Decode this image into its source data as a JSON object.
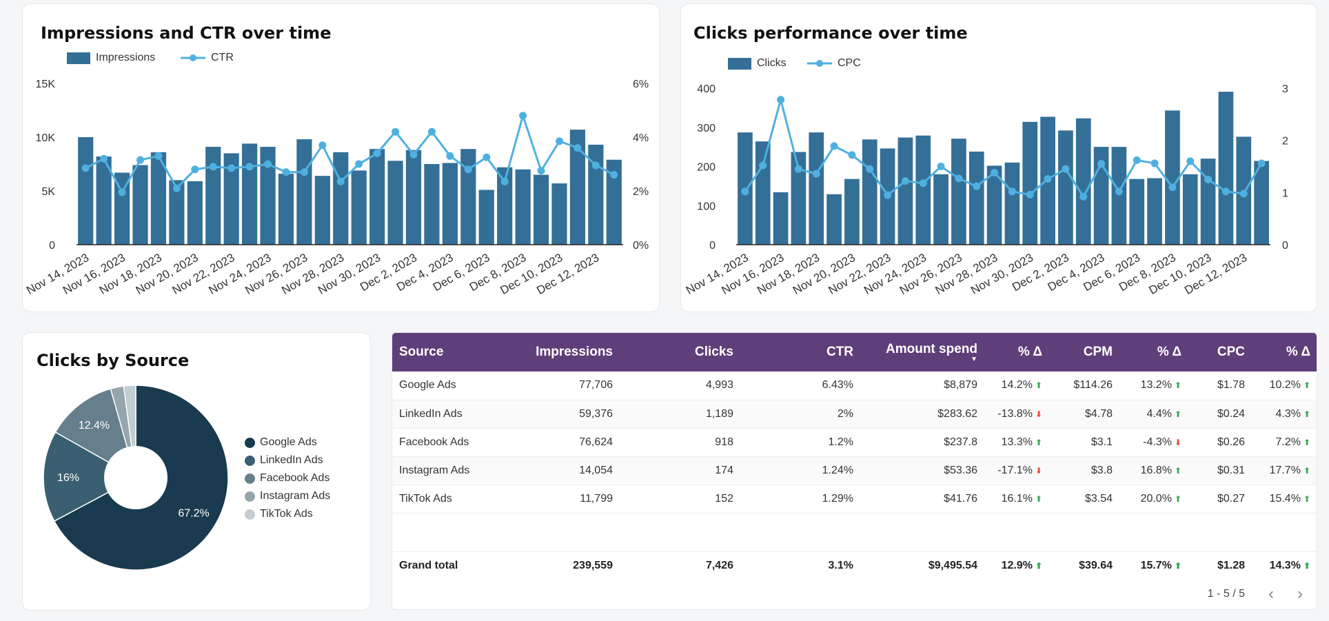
{
  "colors": {
    "bar": "#346f97",
    "line": "#4fb0e0",
    "header_bg": "#5f3f79",
    "pie": [
      "#193a4f",
      "#3a5f72",
      "#667f8c",
      "#96a4ac",
      "#c3ccd1"
    ]
  },
  "charts": {
    "impressions": {
      "title": "Impressions and CTR over time",
      "legend": {
        "bar": "Impressions",
        "line": "CTR"
      }
    },
    "clicks": {
      "title": "Clicks performance over time",
      "legend": {
        "bar": "Clicks",
        "line": "CPC"
      }
    },
    "pie": {
      "title": "Clicks by Source",
      "legend": [
        "Google Ads",
        "LinkedIn Ads",
        "Facebook Ads",
        "Instagram Ads",
        "TikTok Ads"
      ]
    }
  },
  "chart_data": [
    {
      "type": "bar+line",
      "title": "Impressions and CTR over time",
      "x": [
        "Nov 14, 2023",
        "Nov 15, 2023",
        "Nov 16, 2023",
        "Nov 17, 2023",
        "Nov 18, 2023",
        "Nov 19, 2023",
        "Nov 20, 2023",
        "Nov 21, 2023",
        "Nov 22, 2023",
        "Nov 23, 2023",
        "Nov 24, 2023",
        "Nov 25, 2023",
        "Nov 26, 2023",
        "Nov 27, 2023",
        "Nov 28, 2023",
        "Nov 29, 2023",
        "Nov 30, 2023",
        "Dec 1, 2023",
        "Dec 2, 2023",
        "Dec 3, 2023",
        "Dec 4, 2023",
        "Dec 5, 2023",
        "Dec 6, 2023",
        "Dec 7, 2023",
        "Dec 8, 2023",
        "Dec 9, 2023",
        "Dec 10, 2023",
        "Dec 11, 2023",
        "Dec 12, 2023",
        "Dec 13, 2023"
      ],
      "x_tick_labels": [
        "Nov 14, 2023",
        "Nov 16, 2023",
        "Nov 18, 2023",
        "Nov 20, 2023",
        "Nov 22, 2023",
        "Nov 24, 2023",
        "Nov 26, 2023",
        "Nov 28, 2023",
        "Nov 30, 2023",
        "Dec 2, 2023",
        "Dec 4, 2023",
        "Dec 6, 2023",
        "Dec 8, 2023",
        "Dec 10, 2023",
        "Dec 12, 2023"
      ],
      "series": [
        {
          "name": "Impressions",
          "kind": "bar",
          "axis": "left",
          "values": [
            10000,
            8200,
            6700,
            7400,
            8600,
            6000,
            5900,
            9100,
            8500,
            9400,
            9100,
            6600,
            9800,
            6400,
            8600,
            6900,
            8900,
            7800,
            8800,
            7500,
            7600,
            8900,
            5100,
            7200,
            7000,
            6500,
            5700,
            10700,
            9300,
            7900
          ]
        },
        {
          "name": "CTR",
          "kind": "line",
          "axis": "right",
          "values": [
            2.85,
            3.2,
            1.95,
            3.15,
            3.3,
            2.1,
            2.8,
            2.9,
            2.85,
            2.9,
            3.0,
            2.7,
            2.7,
            3.7,
            2.35,
            3.0,
            3.4,
            4.2,
            3.35,
            4.2,
            3.3,
            2.8,
            3.25,
            2.35,
            4.8,
            2.75,
            3.85,
            3.6,
            2.95,
            2.6
          ]
        }
      ],
      "y_left": {
        "ticks": [
          "0",
          "5K",
          "10K",
          "15K"
        ],
        "range": [
          0,
          15000
        ]
      },
      "y_right": {
        "ticks": [
          "0%",
          "2%",
          "4%",
          "6%"
        ],
        "range": [
          0,
          6
        ]
      }
    },
    {
      "type": "bar+line",
      "title": "Clicks performance over time",
      "x": [
        "Nov 14, 2023",
        "Nov 15, 2023",
        "Nov 16, 2023",
        "Nov 17, 2023",
        "Nov 18, 2023",
        "Nov 19, 2023",
        "Nov 20, 2023",
        "Nov 21, 2023",
        "Nov 22, 2023",
        "Nov 23, 2023",
        "Nov 24, 2023",
        "Nov 25, 2023",
        "Nov 26, 2023",
        "Nov 27, 2023",
        "Nov 28, 2023",
        "Nov 29, 2023",
        "Nov 30, 2023",
        "Dec 1, 2023",
        "Dec 2, 2023",
        "Dec 3, 2023",
        "Dec 4, 2023",
        "Dec 5, 2023",
        "Dec 6, 2023",
        "Dec 7, 2023",
        "Dec 8, 2023",
        "Dec 9, 2023",
        "Dec 10, 2023",
        "Dec 11, 2023",
        "Dec 12, 2023",
        "Dec 13, 2023"
      ],
      "x_tick_labels": [
        "Nov 14, 2023",
        "Nov 16, 2023",
        "Nov 18, 2023",
        "Nov 20, 2023",
        "Nov 22, 2023",
        "Nov 24, 2023",
        "Nov 26, 2023",
        "Nov 28, 2023",
        "Nov 30, 2023",
        "Dec 2, 2023",
        "Dec 4, 2023",
        "Dec 6, 2023",
        "Dec 8, 2023",
        "Dec 10, 2023",
        "Dec 12, 2023"
      ],
      "series": [
        {
          "name": "Clicks",
          "kind": "bar",
          "axis": "left",
          "values": [
            287,
            264,
            134,
            237,
            287,
            129,
            168,
            269,
            246,
            274,
            279,
            180,
            271,
            238,
            202,
            210,
            314,
            327,
            292,
            323,
            250,
            250,
            168,
            170,
            343,
            180,
            220,
            391,
            276,
            214
          ]
        },
        {
          "name": "CPC",
          "kind": "line",
          "axis": "right",
          "values": [
            1.02,
            1.52,
            2.78,
            1.45,
            1.36,
            1.89,
            1.72,
            1.45,
            0.95,
            1.22,
            1.18,
            1.5,
            1.27,
            1.12,
            1.38,
            1.02,
            0.96,
            1.26,
            1.45,
            0.92,
            1.55,
            1.02,
            1.62,
            1.56,
            1.1,
            1.6,
            1.25,
            1.02,
            0.98,
            1.56
          ]
        }
      ],
      "y_left": {
        "ticks": [
          "0",
          "100",
          "200",
          "300",
          "400"
        ],
        "range": [
          0,
          400
        ]
      },
      "y_right": {
        "ticks": [
          "0",
          "1",
          "2",
          "3"
        ],
        "range": [
          0,
          3
        ]
      }
    },
    {
      "type": "pie",
      "title": "Clicks by Source",
      "categories": [
        "Google Ads",
        "LinkedIn Ads",
        "Facebook Ads",
        "Instagram Ads",
        "TikTok Ads"
      ],
      "values": [
        67.2,
        16,
        12.4,
        2.3,
        2.1
      ],
      "data_labels": [
        "67.2%",
        "16%",
        "12.4%",
        "",
        ""
      ],
      "donut": true
    }
  ],
  "table": {
    "headers": [
      "Source",
      "Impressions",
      "Clicks",
      "CTR",
      "Amount spend",
      "% Δ",
      "CPM",
      "% Δ",
      "CPC",
      "% Δ"
    ],
    "sort_indicator": "▼",
    "rows": [
      [
        "Google Ads",
        "77,706",
        "4,993",
        "6.43%",
        "$8,879",
        "14.2%",
        "$114.26",
        "13.2%",
        "$1.78",
        "10.2%"
      ],
      [
        "LinkedIn Ads",
        "59,376",
        "1,189",
        "2%",
        "$283.62",
        "-13.8%",
        "$4.78",
        "4.4%",
        "$0.24",
        "4.3%"
      ],
      [
        "Facebook Ads",
        "76,624",
        "918",
        "1.2%",
        "$237.8",
        "13.3%",
        "$3.1",
        "-4.3%",
        "$0.26",
        "7.2%"
      ],
      [
        "Instagram Ads",
        "14,054",
        "174",
        "1.24%",
        "$53.36",
        "-17.1%",
        "$3.8",
        "16.8%",
        "$0.31",
        "17.7%"
      ],
      [
        "TikTok Ads",
        "11,799",
        "152",
        "1.29%",
        "$41.76",
        "16.1%",
        "$3.54",
        "20.0%",
        "$0.27",
        "15.4%"
      ]
    ],
    "deltas": [
      [
        "up",
        "up",
        "up"
      ],
      [
        "down",
        "up",
        "up"
      ],
      [
        "up",
        "down",
        "up"
      ],
      [
        "down",
        "up",
        "up"
      ],
      [
        "up",
        "up",
        "up"
      ]
    ],
    "total": [
      "Grand total",
      "239,559",
      "7,426",
      "3.1%",
      "$9,495.54",
      "12.9%",
      "$39.64",
      "15.7%",
      "$1.28",
      "14.3%"
    ],
    "total_deltas": [
      "up",
      "up",
      "up"
    ],
    "pagination": "1 - 5 / 5"
  }
}
